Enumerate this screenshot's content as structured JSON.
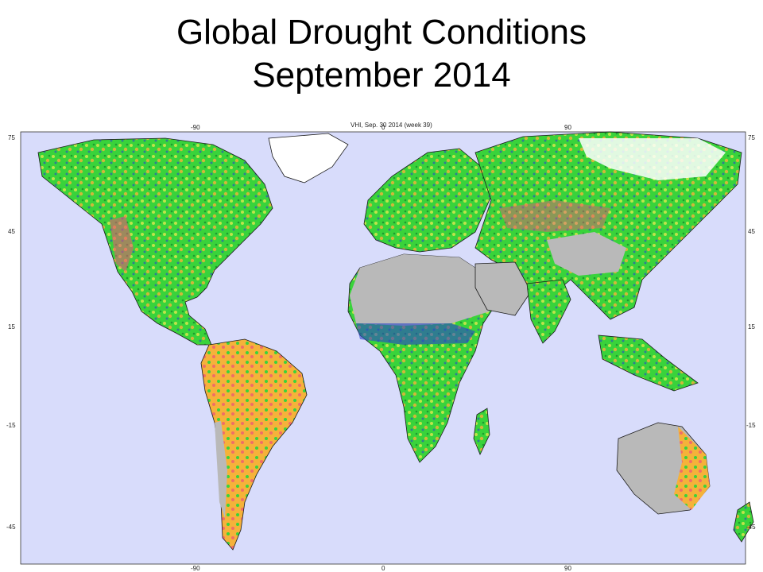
{
  "slide": {
    "title_line1": "Global Drought Conditions",
    "title_line2": "September 2014"
  },
  "map": {
    "caption": "VHI, Sep. 30 2014 (week 39)",
    "top_ticks": [
      "-90",
      "0",
      "90"
    ],
    "bottom_ticks": [
      "-90",
      "0",
      "90"
    ],
    "left_ticks": [
      "75",
      "45",
      "15",
      "-15",
      "-45"
    ],
    "right_ticks": [
      "75",
      "45",
      "15",
      "-15",
      "-45"
    ],
    "colors": {
      "ocean": "#d8dcfb",
      "no_data": "#b9b9b9",
      "ice": "#ffffff",
      "healthy": "#39d33b",
      "very_healthy": "#2a45c8",
      "moderate": "#bfe34a",
      "dry": "#f5b23a",
      "severe": "#f04f7a",
      "border": "#1a1a1a"
    }
  }
}
